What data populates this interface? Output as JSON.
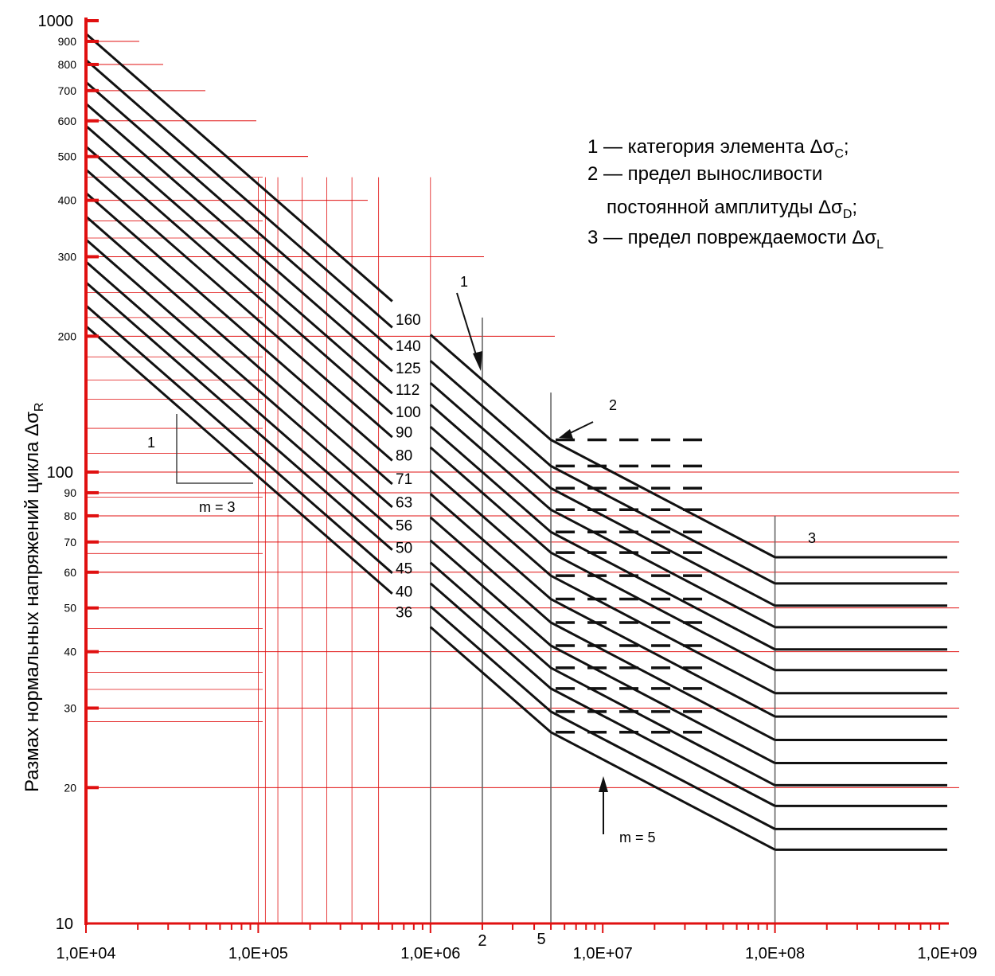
{
  "chart_data": {
    "type": "line",
    "xscale": "log",
    "yscale": "log",
    "xlim": [
      10000,
      1000000000
    ],
    "ylim": [
      10,
      1000
    ],
    "ylabel": "Размах нормальных напряжений цикла Δσ",
    "ylabel_sub": "R",
    "x_ticks": [
      "1,0E+04",
      "1,0E+05",
      "1,0E+06",
      "1,0E+07",
      "1,0E+08",
      "1,0E+09"
    ],
    "y_ticks_main": [
      "1000",
      "100",
      "10"
    ],
    "y_ticks_minor": [
      "900",
      "800",
      "700",
      "600",
      "500",
      "400",
      "300",
      "200",
      "90",
      "80",
      "70",
      "60",
      "50",
      "40",
      "30",
      "20"
    ],
    "cycle_marks": [
      "2",
      "5"
    ],
    "categories": [
      "160",
      "140",
      "125",
      "112",
      "100",
      "90",
      "80",
      "71",
      "63",
      "56",
      "50",
      "45",
      "40",
      "36"
    ],
    "slopes": {
      "m1": "m = 3",
      "m2": "m = 5"
    },
    "slope_triangle_label": "1",
    "markers": [
      "1",
      "2",
      "3"
    ],
    "legend": [
      {
        "text": "1 — категория элемента Δσ",
        "sub": "C",
        "tail": ";"
      },
      {
        "text": "2 — предел выносливости",
        "sub": "",
        "tail": ""
      },
      {
        "text": "постоянной амплитуды Δσ",
        "sub": "D",
        "tail": ";"
      },
      {
        "text": "3 — предел повреждаемости Δσ",
        "sub": "L",
        "tail": ""
      }
    ],
    "grid": true,
    "legend_position": "top-right"
  }
}
